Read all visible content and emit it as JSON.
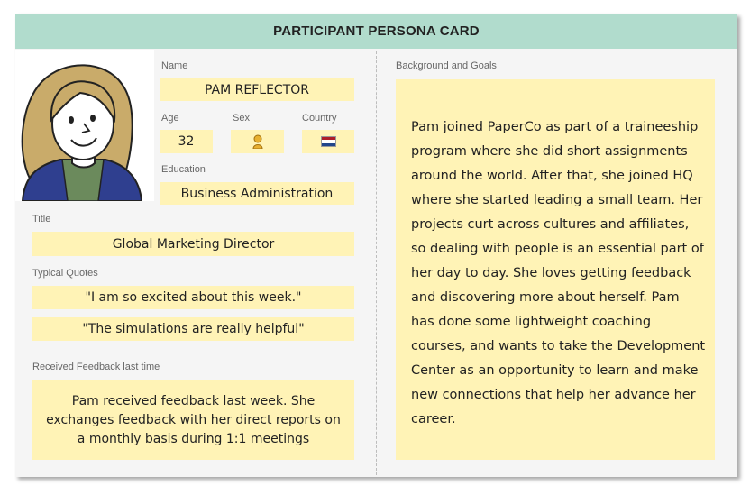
{
  "header": {
    "title": "PARTICIPANT PERSONA CARD"
  },
  "name": {
    "label": "Name",
    "value": "PAM REFLECTOR"
  },
  "age": {
    "label": "Age",
    "value": "32"
  },
  "sex": {
    "label": "Sex",
    "icon": "female-icon"
  },
  "country": {
    "label": "Country",
    "icon": "netherlands-flag-icon",
    "flag_colors": [
      "#ae1c28",
      "#ffffff",
      "#21468b"
    ]
  },
  "education": {
    "label": "Education",
    "value": "Business Administration"
  },
  "title": {
    "label": "Title",
    "value": "Global Marketing Director"
  },
  "quotes": {
    "label": "Typical Quotes",
    "items": [
      "\"I am so excited about this week.\"",
      "\"The simulations are really helpful\""
    ]
  },
  "feedback": {
    "label": "Received Feedback last time",
    "value": "Pam received feedback last week. She exchanges feedback with her direct reports on a monthly basis during 1:1 meetings"
  },
  "background": {
    "label": "Background and Goals",
    "value": "Pam joined PaperCo as part of a traineeship program where she did short assignments around the world. After that, she joined HQ where she started leading a small team. Her projects curt across cultures and affiliates, so dealing with people is an essential part of her day to day. She loves getting feedback and discovering more about herself. Pam has done some lightweight coaching courses, and wants to take the Development Center as an opportunity to learn and make new connections that help her advance her career."
  },
  "colors": {
    "header_bg": "#b1dccd",
    "field_bg": "#fff3b6",
    "card_bg": "#f5f5f5"
  }
}
